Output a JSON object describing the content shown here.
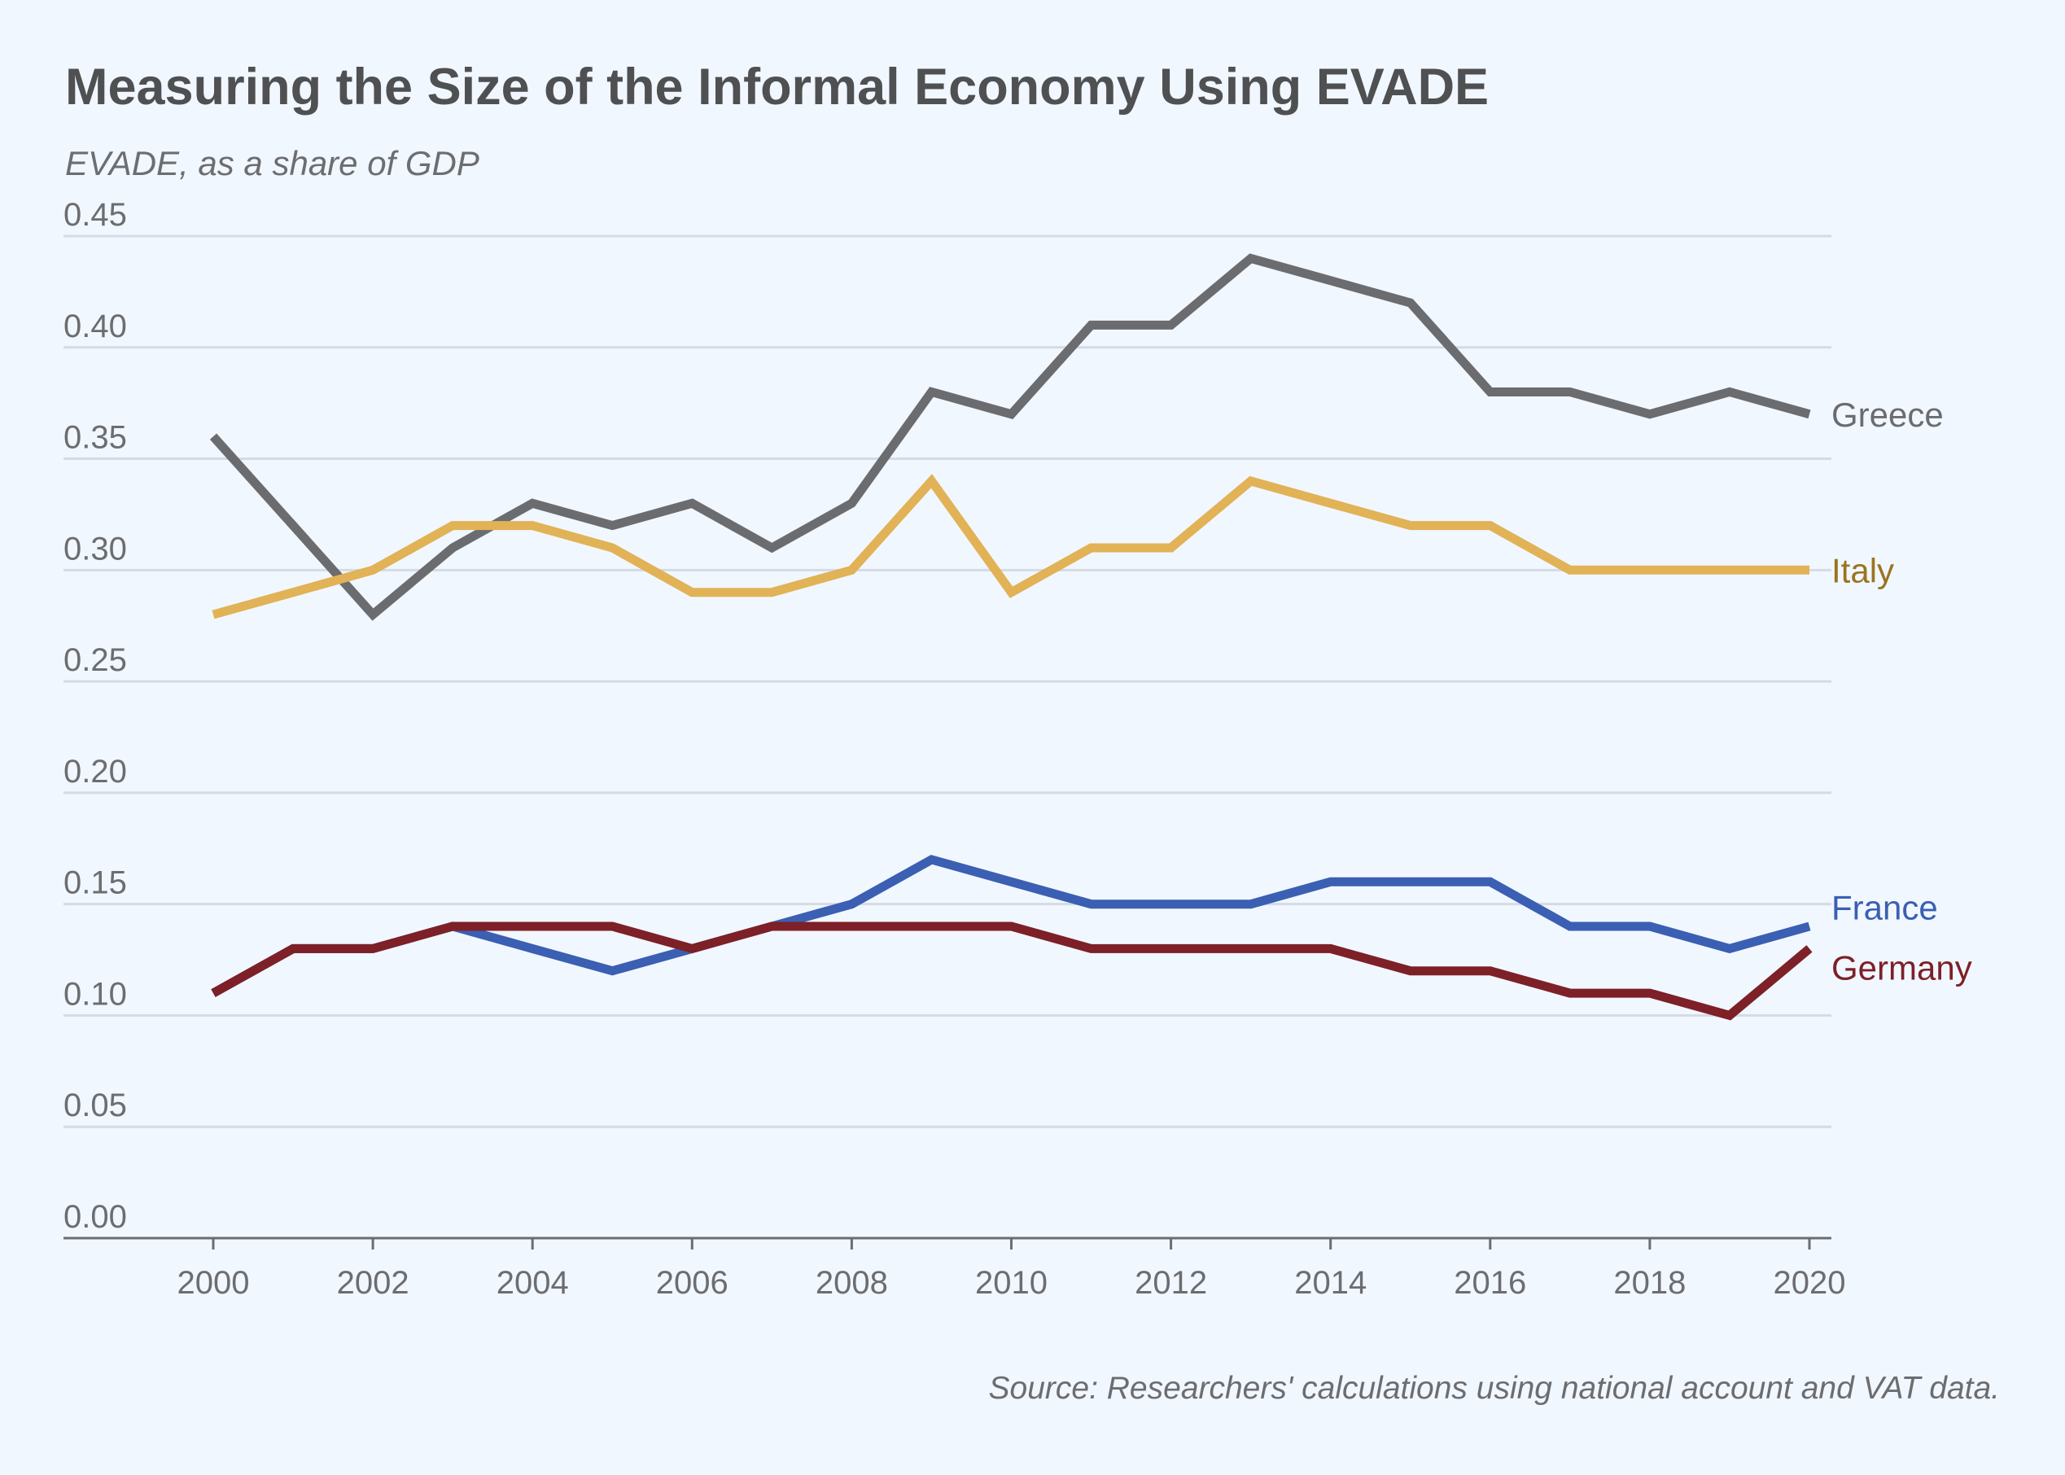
{
  "chart_data": {
    "type": "line",
    "title": "Measuring the Size of the Informal Economy Using EVADE",
    "subtitle": "EVADE, as a share of GDP",
    "source": "Source: Researchers' calculations using national account and VAT data.",
    "xlabel": "",
    "ylabel": "",
    "x": [
      2000,
      2001,
      2002,
      2003,
      2004,
      2005,
      2006,
      2007,
      2008,
      2009,
      2010,
      2011,
      2012,
      2013,
      2014,
      2015,
      2016,
      2017,
      2018,
      2019,
      2020
    ],
    "xticks": [
      "2000",
      "2002",
      "2004",
      "2006",
      "2008",
      "2010",
      "2012",
      "2014",
      "2016",
      "2018",
      "2020"
    ],
    "yticks": [
      "0.00",
      "0.05",
      "0.10",
      "0.15",
      "0.20",
      "0.25",
      "0.30",
      "0.35",
      "0.40",
      "0.45"
    ],
    "xlim": [
      2000,
      2020
    ],
    "ylim": [
      0,
      0.45
    ],
    "grid": true,
    "legend": "direct labels at right end of lines",
    "series": [
      {
        "name": "Greece",
        "color": "#6b6c6f",
        "label_color": "#6b6c6f",
        "values": [
          0.36,
          0.32,
          0.28,
          0.31,
          0.33,
          0.32,
          0.33,
          0.31,
          0.33,
          0.38,
          0.37,
          0.41,
          0.41,
          0.44,
          0.43,
          0.42,
          0.38,
          0.38,
          0.37,
          0.38,
          0.37
        ]
      },
      {
        "name": "Italy",
        "color": "#e1b256",
        "label_color": "#9a7420",
        "values": [
          0.28,
          0.29,
          0.3,
          0.32,
          0.32,
          0.31,
          0.29,
          0.29,
          0.3,
          0.34,
          0.29,
          0.31,
          0.31,
          0.34,
          0.33,
          0.32,
          0.32,
          0.3,
          0.3,
          0.3,
          0.3
        ]
      },
      {
        "name": "France",
        "color": "#3a5fb3",
        "label_color": "#3a5fb3",
        "values": [
          0.11,
          0.13,
          0.13,
          0.14,
          0.13,
          0.12,
          0.13,
          0.14,
          0.15,
          0.17,
          0.16,
          0.15,
          0.15,
          0.15,
          0.16,
          0.16,
          0.16,
          0.14,
          0.14,
          0.13,
          0.14
        ]
      },
      {
        "name": "Germany",
        "color": "#7d2027",
        "label_color": "#7d2027",
        "values": [
          0.11,
          0.13,
          0.13,
          0.14,
          0.14,
          0.14,
          0.13,
          0.14,
          0.14,
          0.14,
          0.14,
          0.13,
          0.13,
          0.13,
          0.13,
          0.12,
          0.12,
          0.11,
          0.11,
          0.1,
          0.13
        ]
      }
    ]
  }
}
